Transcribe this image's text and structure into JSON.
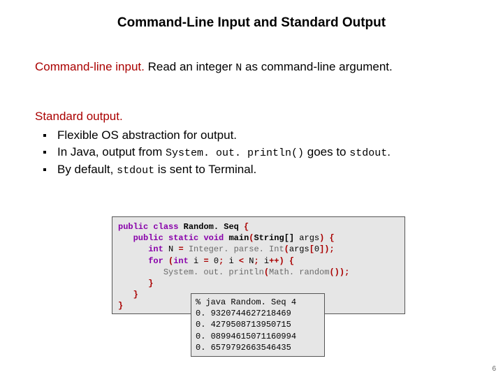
{
  "title": "Command-Line Input and Standard Output",
  "para1": {
    "lead": "Command-line input.",
    "rest_a": "  Read an integer ",
    "code_n": "N",
    "rest_b": " as command-line argument."
  },
  "para2": {
    "lead": "Standard output.",
    "b1": "Flexible OS abstraction for output.",
    "b2_a": "In Java, output from ",
    "b2_code1": "System. out. println()",
    "b2_b": " goes to ",
    "b2_code2": "stdout",
    "b2_c": ".",
    "b3_a": "By default, ",
    "b3_code": "stdout",
    "b3_b": " is sent to Terminal."
  },
  "code": {
    "kw_public": "public",
    "kw_class": "class",
    "cls_random": "Random. Seq",
    "brace_open": " {",
    "kw_static": "static",
    "kw_void": "void",
    "m_main": "main",
    "paren_open": "(",
    "type_string_arr": "String[]",
    "arg_args": " args",
    "paren_close_brace": ") {",
    "kw_int": "int",
    "var_N": " N ",
    "eq": "=",
    "int_parse": " Integer. parse. Int",
    "args0": "args",
    "bracket0_open": "[",
    "zero": "0",
    "bracket0_close_semi": "]);",
    "kw_for": "for",
    "for_open": " (",
    "for_decl_a": " i ",
    "for_zero": " 0",
    "semi": ";",
    "for_cond_a": " i ",
    "lt": "<",
    "for_N": " N",
    "for_inc": " i",
    "pp": "++) {",
    "sys_out": "System. out. println",
    "math_rand": "Math. random",
    "empty_call_close": "());",
    "brace_close": "}"
  },
  "term": {
    "l1": "% java Random. Seq 4",
    "l2": "0. 9320744627218469",
    "l3": "0. 4279508713950715",
    "l4": "0. 08994615071160994",
    "l5": "0. 6579792663546435"
  },
  "pagenum": "6",
  "colors": {
    "red": "#aa0000",
    "kw": "#8800aa",
    "box_bg": "#e6e6e6",
    "box_border": "#555555",
    "mem": "#6a6a6a"
  }
}
